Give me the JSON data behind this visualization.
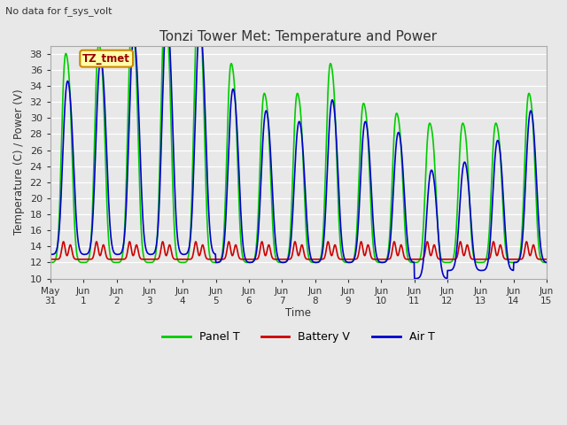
{
  "title": "Tonzi Tower Met: Temperature and Power",
  "no_data_label": "No data for f_sys_volt",
  "tz_label": "TZ_tmet",
  "ylabel": "Temperature (C) / Power (V)",
  "xlabel": "Time",
  "ylim": [
    10,
    39
  ],
  "yticks": [
    10,
    12,
    14,
    16,
    18,
    20,
    22,
    24,
    26,
    28,
    30,
    32,
    34,
    36,
    38
  ],
  "fig_bg_color": "#e8e8e8",
  "plot_bg_color": "#e8e8e8",
  "panel_color": "#00cc00",
  "battery_color": "#cc0000",
  "air_color": "#0000cc",
  "line_width": 1.2,
  "x_tick_labels": [
    "May\n31",
    "Jun 1",
    "Jun 2",
    "Jun 3",
    "Jun 4",
    "Jun 5",
    "Jun 6",
    "Jun 7",
    "Jun 8",
    "Jun 9",
    "Jun\n10",
    "Jun\n11",
    "Jun\n12",
    "Jun\n13",
    "Jun\n14",
    "Jun\n15"
  ],
  "legend_labels": [
    "Panel T",
    "Battery V",
    "Air T"
  ]
}
